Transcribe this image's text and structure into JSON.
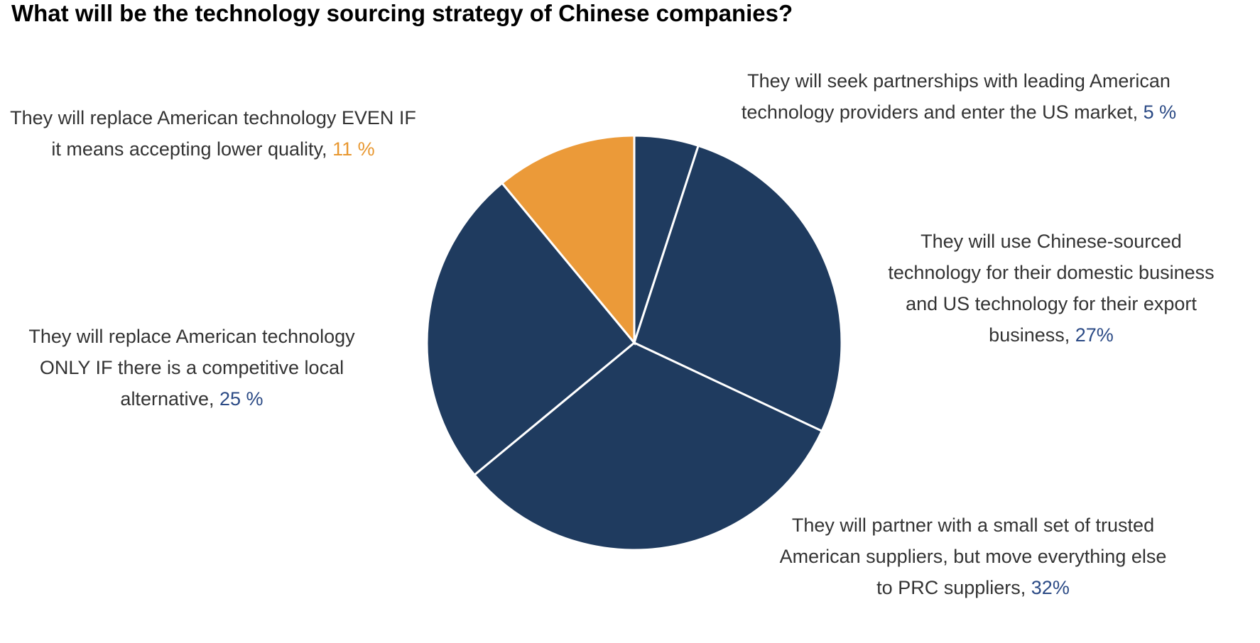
{
  "title": "What will be the technology sourcing strategy of Chinese companies?",
  "colors": {
    "navy": "#1f3b5f",
    "orange": "#eb9a39",
    "pct_navy": "#2b4a85",
    "pct_orange": "#e8972f"
  },
  "chart_data": {
    "type": "pie",
    "title": "What will be the technology sourcing strategy of Chinese companies?",
    "start": "12 o'clock, clockwise",
    "slices": [
      {
        "label": "They will seek partnerships with leading American technology providers and enter the US market,",
        "value": 5,
        "value_label": "5 %",
        "color": "#1f3b5f"
      },
      {
        "label": "They will use Chinese-sourced technology for their domestic business and US technology for their export business,",
        "value": 27,
        "value_label": "27%",
        "color": "#1f3b5f"
      },
      {
        "label": "They will partner with a small set of trusted American suppliers, but move everything else to PRC suppliers,",
        "value": 32,
        "value_label": "32%",
        "color": "#1f3b5f"
      },
      {
        "label": "They will replace American technology ONLY IF there is a competitive local alternative,",
        "value": 25,
        "value_label": "25 %",
        "color": "#1f3b5f"
      },
      {
        "label": "They will replace American technology EVEN IF it means accepting lower quality,",
        "value": 11,
        "value_label": "11 %",
        "color": "#eb9a39"
      }
    ]
  }
}
